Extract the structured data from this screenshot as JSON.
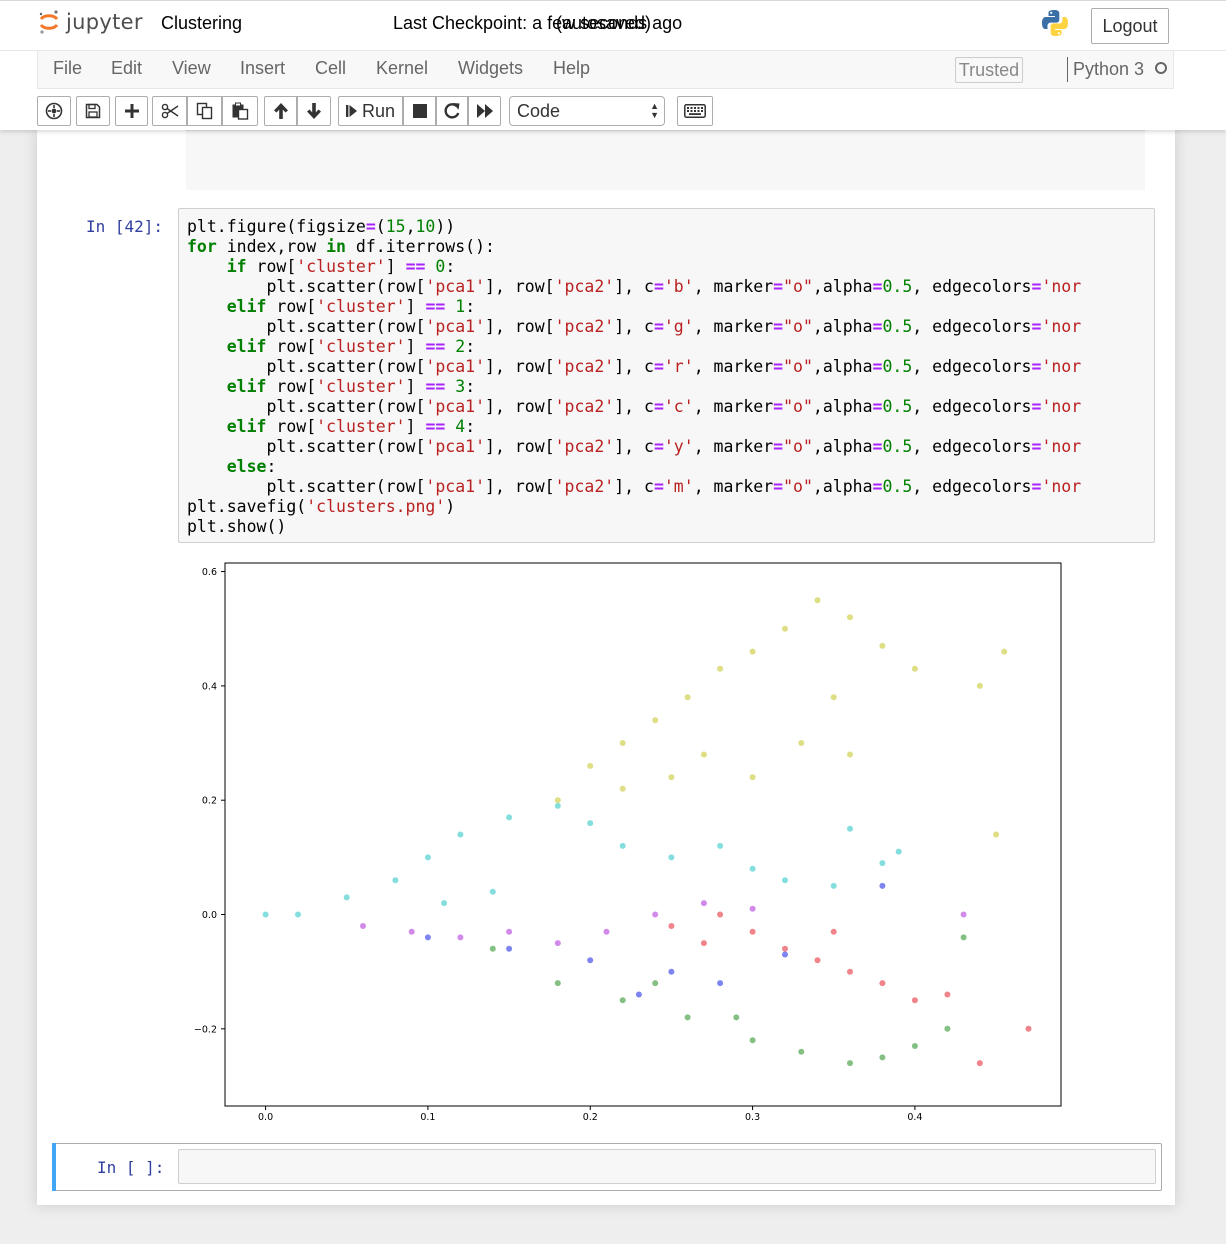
{
  "header": {
    "logo_text": "jupyter",
    "notebook_title": "Clustering",
    "checkpoint": "Last Checkpoint: a few seconds ago",
    "autosave_status": "(autosaved)",
    "logout_label": "Logout"
  },
  "menubar": {
    "items": [
      "File",
      "Edit",
      "View",
      "Insert",
      "Cell",
      "Kernel",
      "Widgets",
      "Help"
    ],
    "trusted_label": "Trusted",
    "kernel_name": "Python 3"
  },
  "toolbar": {
    "icons": [
      "command-palette-icon",
      "save-icon",
      "plus-icon",
      "cut-icon",
      "copy-icon",
      "paste-icon",
      "arrow-up-icon",
      "arrow-down-icon",
      "step-forward-icon",
      "stop-icon",
      "refresh-icon",
      "fast-forward-icon",
      "keyboard-icon"
    ],
    "run_label": "Run",
    "cell_type": "Code"
  },
  "cells": {
    "code_cell": {
      "prompt": "In [42]:",
      "code_lines": [
        "plt.figure(figsize=(15,10))",
        "for index,row in df.iterrows():",
        "    if row['cluster'] == 0:",
        "        plt.scatter(row['pca1'], row['pca2'], c='b', marker=\"o\",alpha=0.5, edgecolors='nor",
        "    elif row['cluster'] == 1:",
        "        plt.scatter(row['pca1'], row['pca2'], c='g', marker=\"o\",alpha=0.5, edgecolors='nor",
        "    elif row['cluster'] == 2:",
        "        plt.scatter(row['pca1'], row['pca2'], c='r', marker=\"o\",alpha=0.5, edgecolors='nor",
        "    elif row['cluster'] == 3:",
        "        plt.scatter(row['pca1'], row['pca2'], c='c', marker=\"o\",alpha=0.5, edgecolors='nor",
        "    elif row['cluster'] == 4:",
        "        plt.scatter(row['pca1'], row['pca2'], c='y', marker=\"o\",alpha=0.5, edgecolors='nor",
        "    else:",
        "        plt.scatter(row['pca1'], row['pca2'], c='m', marker=\"o\",alpha=0.5, edgecolors='nor",
        "plt.savefig('clusters.png')",
        "plt.show()"
      ]
    },
    "empty_cell": {
      "prompt": "In [ ]:"
    }
  },
  "chart_data": {
    "type": "scatter",
    "title": "",
    "xlabel": "",
    "ylabel": "",
    "xlim": [
      -0.025,
      0.49
    ],
    "ylim": [
      -0.335,
      0.615
    ],
    "xticks": [
      0.0,
      0.1,
      0.2,
      0.3,
      0.4
    ],
    "yticks": [
      -0.2,
      0.0,
      0.2,
      0.4,
      0.6
    ],
    "xtick_labels": [
      "0.0",
      "0.1",
      "0.2",
      "0.3",
      "0.4"
    ],
    "ytick_labels": [
      "−0.2",
      "0.0",
      "0.2",
      "0.4",
      "0.6"
    ],
    "grid": false,
    "legend": "none",
    "series": [
      {
        "color": "#c8c832",
        "points": [
          [
            0.18,
            0.2
          ],
          [
            0.2,
            0.26
          ],
          [
            0.22,
            0.3
          ],
          [
            0.24,
            0.34
          ],
          [
            0.26,
            0.38
          ],
          [
            0.28,
            0.43
          ],
          [
            0.3,
            0.46
          ],
          [
            0.32,
            0.5
          ],
          [
            0.34,
            0.55
          ],
          [
            0.36,
            0.52
          ],
          [
            0.38,
            0.47
          ],
          [
            0.4,
            0.43
          ],
          [
            0.35,
            0.38
          ],
          [
            0.33,
            0.3
          ],
          [
            0.3,
            0.24
          ],
          [
            0.27,
            0.28
          ],
          [
            0.25,
            0.24
          ],
          [
            0.22,
            0.22
          ],
          [
            0.36,
            0.28
          ],
          [
            0.45,
            0.14
          ],
          [
            0.44,
            0.4
          ],
          [
            0.455,
            0.46
          ]
        ]
      },
      {
        "color": "#32c8c8",
        "points": [
          [
            0.0,
            0.0
          ],
          [
            0.02,
            0.0
          ],
          [
            0.05,
            0.03
          ],
          [
            0.08,
            0.06
          ],
          [
            0.1,
            0.1
          ],
          [
            0.12,
            0.14
          ],
          [
            0.15,
            0.17
          ],
          [
            0.18,
            0.19
          ],
          [
            0.2,
            0.16
          ],
          [
            0.22,
            0.12
          ],
          [
            0.25,
            0.1
          ],
          [
            0.28,
            0.12
          ],
          [
            0.3,
            0.08
          ],
          [
            0.32,
            0.06
          ],
          [
            0.35,
            0.05
          ],
          [
            0.38,
            0.09
          ],
          [
            0.39,
            0.11
          ],
          [
            0.36,
            0.15
          ],
          [
            0.14,
            0.04
          ],
          [
            0.11,
            0.02
          ]
        ]
      },
      {
        "color": "#e6323c",
        "points": [
          [
            0.28,
            0.0
          ],
          [
            0.3,
            -0.03
          ],
          [
            0.32,
            -0.06
          ],
          [
            0.34,
            -0.08
          ],
          [
            0.36,
            -0.1
          ],
          [
            0.38,
            -0.12
          ],
          [
            0.4,
            -0.15
          ],
          [
            0.42,
            -0.14
          ],
          [
            0.44,
            -0.26
          ],
          [
            0.47,
            -0.2
          ],
          [
            0.35,
            -0.03
          ],
          [
            0.25,
            -0.02
          ],
          [
            0.27,
            -0.05
          ]
        ]
      },
      {
        "color": "#329632",
        "points": [
          [
            0.14,
            -0.06
          ],
          [
            0.18,
            -0.12
          ],
          [
            0.22,
            -0.15
          ],
          [
            0.26,
            -0.18
          ],
          [
            0.3,
            -0.22
          ],
          [
            0.33,
            -0.24
          ],
          [
            0.36,
            -0.26
          ],
          [
            0.38,
            -0.25
          ],
          [
            0.4,
            -0.23
          ],
          [
            0.42,
            -0.2
          ],
          [
            0.43,
            -0.04
          ],
          [
            0.29,
            -0.18
          ],
          [
            0.24,
            -0.12
          ]
        ]
      },
      {
        "color": "#b43cdc",
        "points": [
          [
            0.06,
            -0.02
          ],
          [
            0.09,
            -0.03
          ],
          [
            0.12,
            -0.04
          ],
          [
            0.15,
            -0.03
          ],
          [
            0.18,
            -0.05
          ],
          [
            0.21,
            -0.03
          ],
          [
            0.24,
            0.0
          ],
          [
            0.27,
            0.02
          ],
          [
            0.3,
            0.01
          ],
          [
            0.43,
            0.0
          ]
        ]
      },
      {
        "color": "#2832e6",
        "points": [
          [
            0.1,
            -0.04
          ],
          [
            0.15,
            -0.06
          ],
          [
            0.2,
            -0.08
          ],
          [
            0.25,
            -0.1
          ],
          [
            0.28,
            -0.12
          ],
          [
            0.32,
            -0.07
          ],
          [
            0.23,
            -0.14
          ],
          [
            0.38,
            0.05
          ]
        ]
      }
    ]
  }
}
